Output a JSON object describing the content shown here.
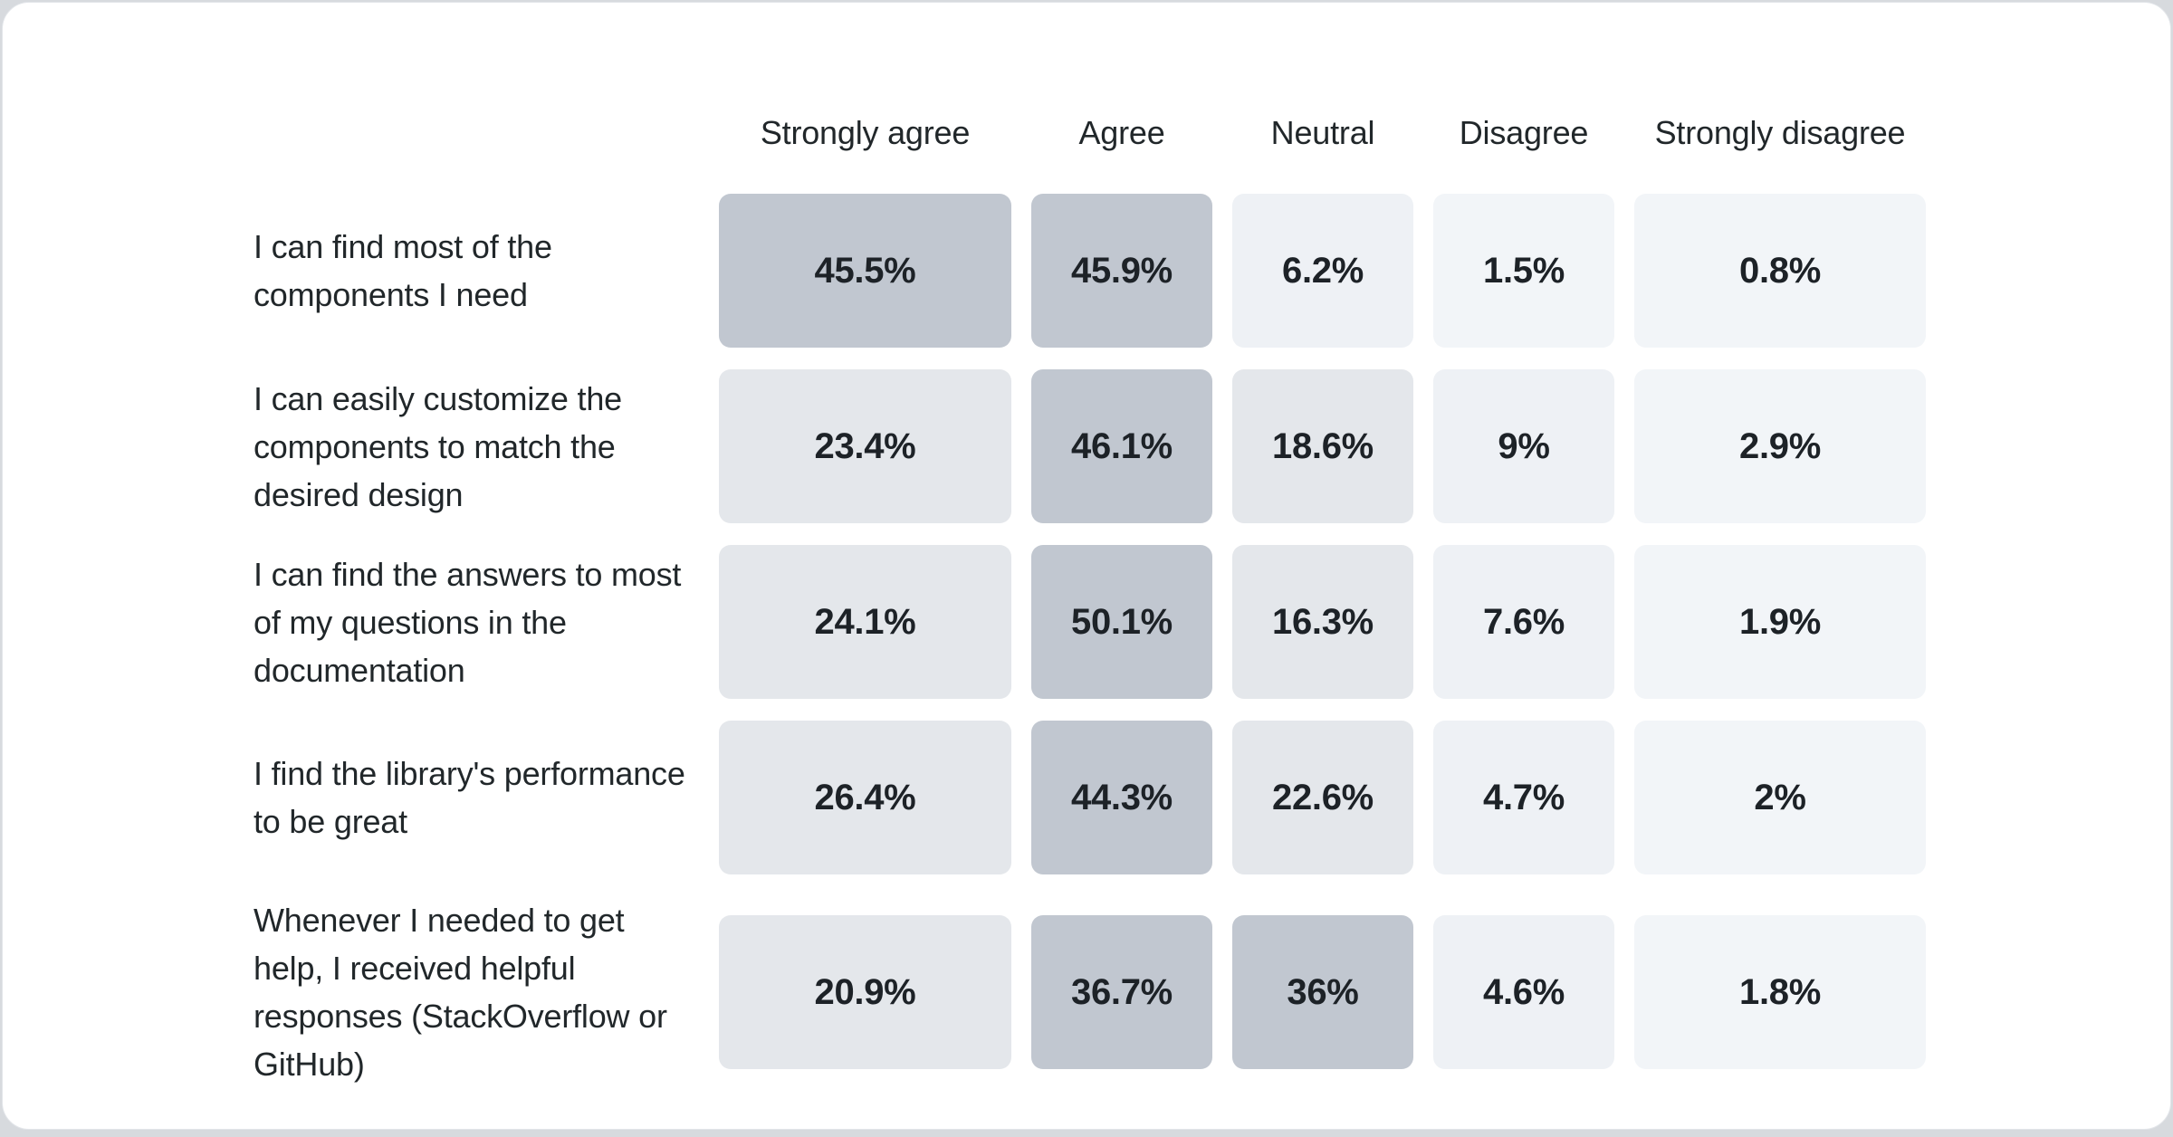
{
  "page": {
    "background": "#d7dade",
    "card_background": "#ffffff",
    "text_color": "#21272a"
  },
  "chart_data": {
    "type": "heatmap",
    "title": "",
    "columns": [
      "Strongly agree",
      "Agree",
      "Neutral",
      "Disagree",
      "Strongly disagree"
    ],
    "rows": [
      {
        "label": "I can find most of the components I need",
        "values": [
          45.5,
          45.9,
          6.2,
          1.5,
          0.8
        ],
        "display": [
          "45.5%",
          "45.9%",
          "6.2%",
          "1.5%",
          "0.8%"
        ]
      },
      {
        "label": "I can easily customize the components to match the desired design",
        "values": [
          23.4,
          46.1,
          18.6,
          9,
          2.9
        ],
        "display": [
          "23.4%",
          "46.1%",
          "18.6%",
          "9%",
          "2.9%"
        ]
      },
      {
        "label": "I can find the answers to most of my questions in the documentation",
        "values": [
          24.1,
          50.1,
          16.3,
          7.6,
          1.9
        ],
        "display": [
          "24.1%",
          "50.1%",
          "16.3%",
          "7.6%",
          "1.9%"
        ]
      },
      {
        "label": "I find the library's performance to be great",
        "values": [
          26.4,
          44.3,
          22.6,
          4.7,
          2
        ],
        "display": [
          "26.4%",
          "44.3%",
          "22.6%",
          "4.7%",
          "2%"
        ]
      },
      {
        "label": "Whenever I needed to get help, I received helpful responses (StackOverflow or GitHub)",
        "values": [
          20.9,
          36.7,
          36,
          4.6,
          1.8
        ],
        "display": [
          "20.9%",
          "36.7%",
          "36%",
          "4.6%",
          "1.8%"
        ]
      }
    ],
    "color_scale": {
      "steps": [
        {
          "min": 30,
          "color": "#c1c7d0"
        },
        {
          "min": 12,
          "color": "#e4e7eb"
        },
        {
          "min": 4,
          "color": "#eef1f5"
        },
        {
          "min": 0,
          "color": "#f2f5f8"
        }
      ]
    },
    "layout": {
      "legend": "none",
      "grid": "off"
    }
  }
}
